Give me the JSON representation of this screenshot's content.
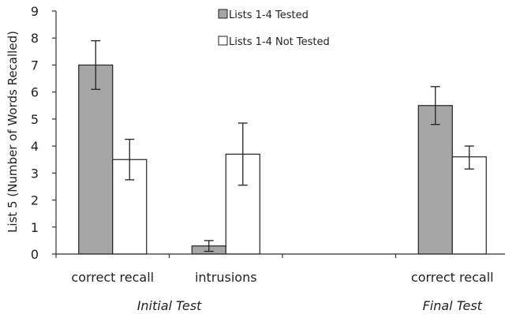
{
  "chart_data": {
    "type": "bar",
    "ylabel": "List 5 (Number of Words Recalled)",
    "ylim": [
      0,
      9
    ],
    "yticks": [
      0,
      1,
      2,
      3,
      4,
      5,
      6,
      7,
      8,
      9
    ],
    "categories": [
      "correct recall",
      "intrusions",
      "",
      "correct recall"
    ],
    "groups": [
      {
        "label": "Initial Test",
        "categories": [
          0,
          1
        ]
      },
      {
        "label": "Final Test",
        "categories": [
          3
        ]
      }
    ],
    "legend_position": "top-center",
    "series": [
      {
        "name": "Lists 1-4 Tested",
        "color": "#a6a6a6",
        "values": [
          7.0,
          0.3,
          null,
          5.5
        ],
        "error_low": [
          6.1,
          0.1,
          null,
          4.8
        ],
        "error_high": [
          7.9,
          0.5,
          null,
          6.2
        ]
      },
      {
        "name": "Lists 1-4 Not Tested",
        "color": "#ffffff",
        "values": [
          3.5,
          3.7,
          null,
          3.6
        ],
        "error_low": [
          2.75,
          2.55,
          null,
          3.15
        ],
        "error_high": [
          4.25,
          4.85,
          null,
          4.0
        ]
      }
    ]
  }
}
